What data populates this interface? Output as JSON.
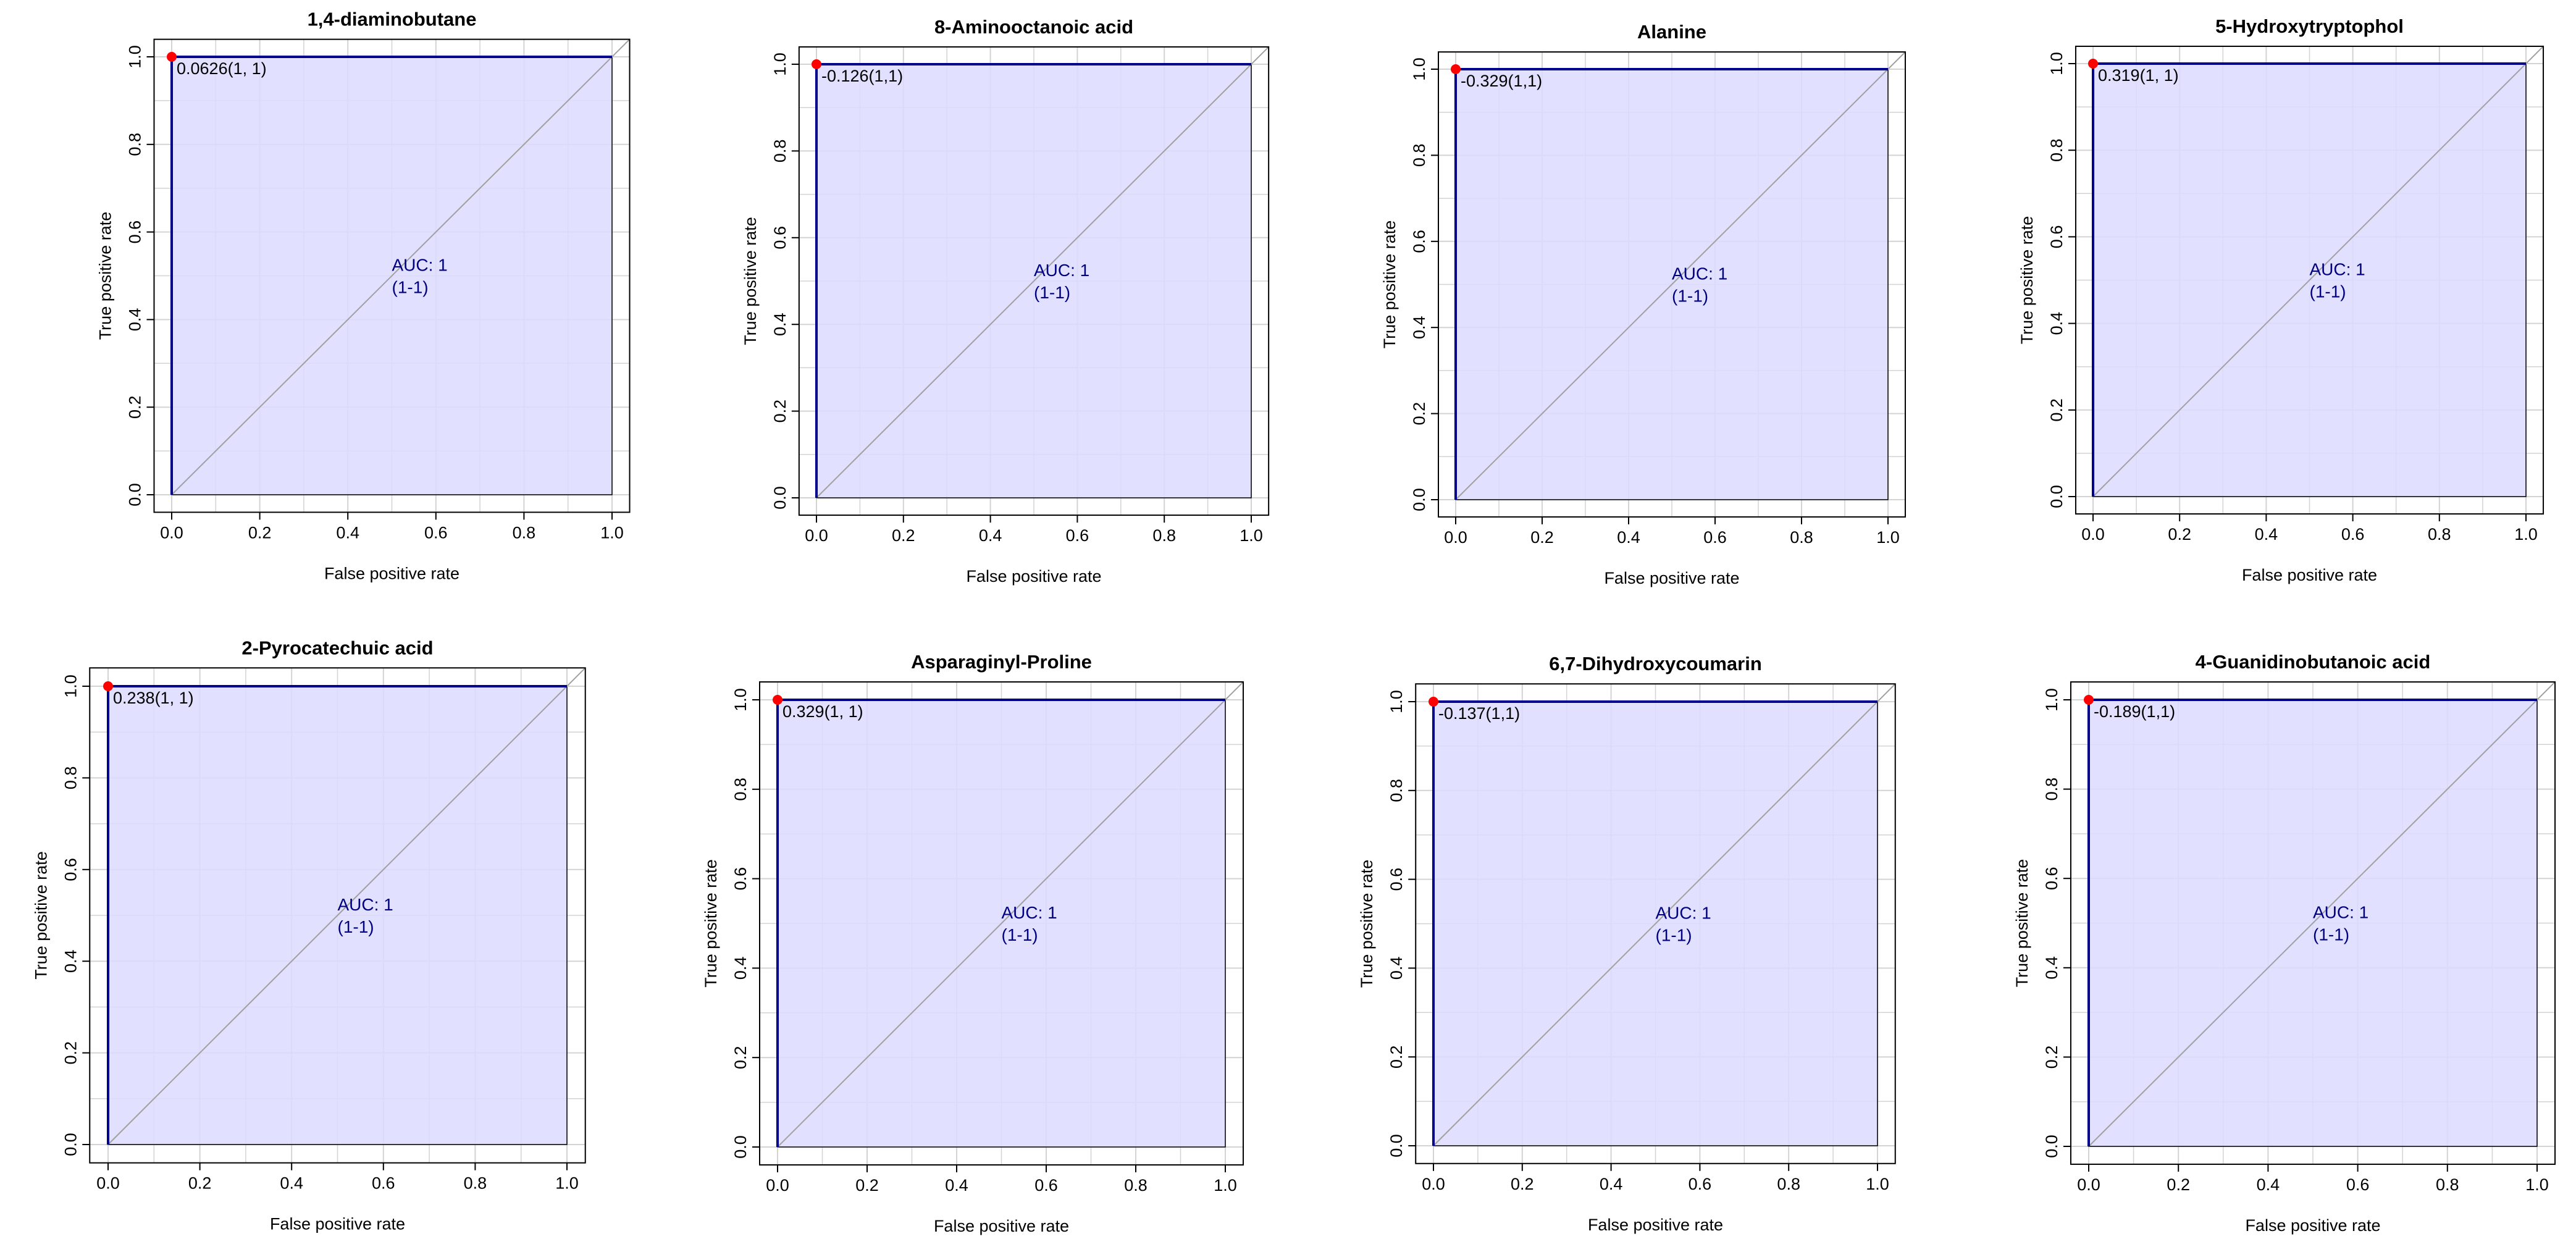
{
  "figure": {
    "layout": "2 rows x 4 columns",
    "colors": {
      "roc_line": "#00008B",
      "auc_fill": "#DCDCFF",
      "grid": "#D3D3D3",
      "diagonal": "#A0A0A0",
      "point": "#FF0000",
      "auc_text": "#000080"
    }
  },
  "chart_data": [
    {
      "type": "line",
      "title": "1,4-diaminobutane",
      "xlabel": "False positive rate",
      "ylabel": "True positive rate",
      "xlim": [
        0,
        1
      ],
      "ylim": [
        0,
        1
      ],
      "xticks": [
        "0.0",
        "0.2",
        "0.4",
        "0.6",
        "0.8",
        "1.0"
      ],
      "yticks": [
        "0.0",
        "0.2",
        "0.4",
        "0.6",
        "0.8",
        "1.0"
      ],
      "grid": true,
      "series": [
        {
          "name": "ROC",
          "x": [
            0,
            0,
            1
          ],
          "y": [
            0,
            1,
            1
          ]
        }
      ],
      "auc_label": "AUC: 1",
      "auc_ci": "(1-1)",
      "threshold_label": "0.0626(1, 1)",
      "threshold_point": [
        0,
        1
      ]
    },
    {
      "type": "line",
      "title": "8-Aminooctanoic acid",
      "xlabel": "False positive rate",
      "ylabel": "True positive rate",
      "xlim": [
        0,
        1
      ],
      "ylim": [
        0,
        1
      ],
      "xticks": [
        "0.0",
        "0.2",
        "0.4",
        "0.6",
        "0.8",
        "1.0"
      ],
      "yticks": [
        "0.0",
        "0.2",
        "0.4",
        "0.6",
        "0.8",
        "1.0"
      ],
      "grid": true,
      "series": [
        {
          "name": "ROC",
          "x": [
            0,
            0,
            1
          ],
          "y": [
            0,
            1,
            1
          ]
        }
      ],
      "auc_label": "AUC: 1",
      "auc_ci": "(1-1)",
      "threshold_label": "-0.126(1,1)",
      "threshold_point": [
        0,
        1
      ]
    },
    {
      "type": "line",
      "title": "Alanine",
      "xlabel": "False positive rate",
      "ylabel": "True positive rate",
      "xlim": [
        0,
        1
      ],
      "ylim": [
        0,
        1
      ],
      "xticks": [
        "0.0",
        "0.2",
        "0.4",
        "0.6",
        "0.8",
        "1.0"
      ],
      "yticks": [
        "0.0",
        "0.2",
        "0.4",
        "0.6",
        "0.8",
        "1.0"
      ],
      "grid": true,
      "series": [
        {
          "name": "ROC",
          "x": [
            0,
            0,
            1
          ],
          "y": [
            0,
            1,
            1
          ]
        }
      ],
      "auc_label": "AUC: 1",
      "auc_ci": "(1-1)",
      "threshold_label": "-0.329(1,1)",
      "threshold_point": [
        0,
        1
      ]
    },
    {
      "type": "line",
      "title": "5-Hydroxytryptophol",
      "xlabel": "False positive rate",
      "ylabel": "True positive rate",
      "xlim": [
        0,
        1
      ],
      "ylim": [
        0,
        1
      ],
      "xticks": [
        "0.0",
        "0.2",
        "0.4",
        "0.6",
        "0.8",
        "1.0"
      ],
      "yticks": [
        "0.0",
        "0.2",
        "0.4",
        "0.6",
        "0.8",
        "1.0"
      ],
      "grid": true,
      "series": [
        {
          "name": "ROC",
          "x": [
            0,
            0,
            1
          ],
          "y": [
            0,
            1,
            1
          ]
        }
      ],
      "auc_label": "AUC: 1",
      "auc_ci": "(1-1)",
      "threshold_label": "0.319(1, 1)",
      "threshold_point": [
        0,
        1
      ]
    },
    {
      "type": "line",
      "title": "2-Pyrocatechuic acid",
      "xlabel": "False positive rate",
      "ylabel": "True positive rate",
      "xlim": [
        0,
        1
      ],
      "ylim": [
        0,
        1
      ],
      "xticks": [
        "0.0",
        "0.2",
        "0.4",
        "0.6",
        "0.8",
        "1.0"
      ],
      "yticks": [
        "0.0",
        "0.2",
        "0.4",
        "0.6",
        "0.8",
        "1.0"
      ],
      "grid": true,
      "series": [
        {
          "name": "ROC",
          "x": [
            0,
            0,
            1
          ],
          "y": [
            0,
            1,
            1
          ]
        }
      ],
      "auc_label": "AUC: 1",
      "auc_ci": "(1-1)",
      "threshold_label": "0.238(1, 1)",
      "threshold_point": [
        0,
        1
      ]
    },
    {
      "type": "line",
      "title": "Asparaginyl-Proline",
      "xlabel": "False positive rate",
      "ylabel": "True positive rate",
      "xlim": [
        0,
        1
      ],
      "ylim": [
        0,
        1
      ],
      "xticks": [
        "0.0",
        "0.2",
        "0.4",
        "0.6",
        "0.8",
        "1.0"
      ],
      "yticks": [
        "0.0",
        "0.2",
        "0.4",
        "0.6",
        "0.8",
        "1.0"
      ],
      "grid": true,
      "series": [
        {
          "name": "ROC",
          "x": [
            0,
            0,
            1
          ],
          "y": [
            0,
            1,
            1
          ]
        }
      ],
      "auc_label": "AUC: 1",
      "auc_ci": "(1-1)",
      "threshold_label": "0.329(1, 1)",
      "threshold_point": [
        0,
        1
      ]
    },
    {
      "type": "line",
      "title": "6,7-Dihydroxycoumarin",
      "xlabel": "False positive rate",
      "ylabel": "True positive rate",
      "xlim": [
        0,
        1
      ],
      "ylim": [
        0,
        1
      ],
      "xticks": [
        "0.0",
        "0.2",
        "0.4",
        "0.6",
        "0.8",
        "1.0"
      ],
      "yticks": [
        "0.0",
        "0.2",
        "0.4",
        "0.6",
        "0.8",
        "1.0"
      ],
      "grid": true,
      "series": [
        {
          "name": "ROC",
          "x": [
            0,
            0,
            1
          ],
          "y": [
            0,
            1,
            1
          ]
        }
      ],
      "auc_label": "AUC: 1",
      "auc_ci": "(1-1)",
      "threshold_label": "-0.137(1,1)",
      "threshold_point": [
        0,
        1
      ]
    },
    {
      "type": "line",
      "title": "4-Guanidinobutanoic acid",
      "xlabel": "False positive rate",
      "ylabel": "True positive rate",
      "xlim": [
        0,
        1
      ],
      "ylim": [
        0,
        1
      ],
      "xticks": [
        "0.0",
        "0.2",
        "0.4",
        "0.6",
        "0.8",
        "1.0"
      ],
      "yticks": [
        "0.0",
        "0.2",
        "0.4",
        "0.6",
        "0.8",
        "1.0"
      ],
      "grid": true,
      "series": [
        {
          "name": "ROC",
          "x": [
            0,
            0,
            1
          ],
          "y": [
            0,
            1,
            1
          ]
        }
      ],
      "auc_label": "AUC: 1",
      "auc_ci": "(1-1)",
      "threshold_label": "-0.189(1,1)",
      "threshold_point": [
        0,
        1
      ]
    }
  ]
}
